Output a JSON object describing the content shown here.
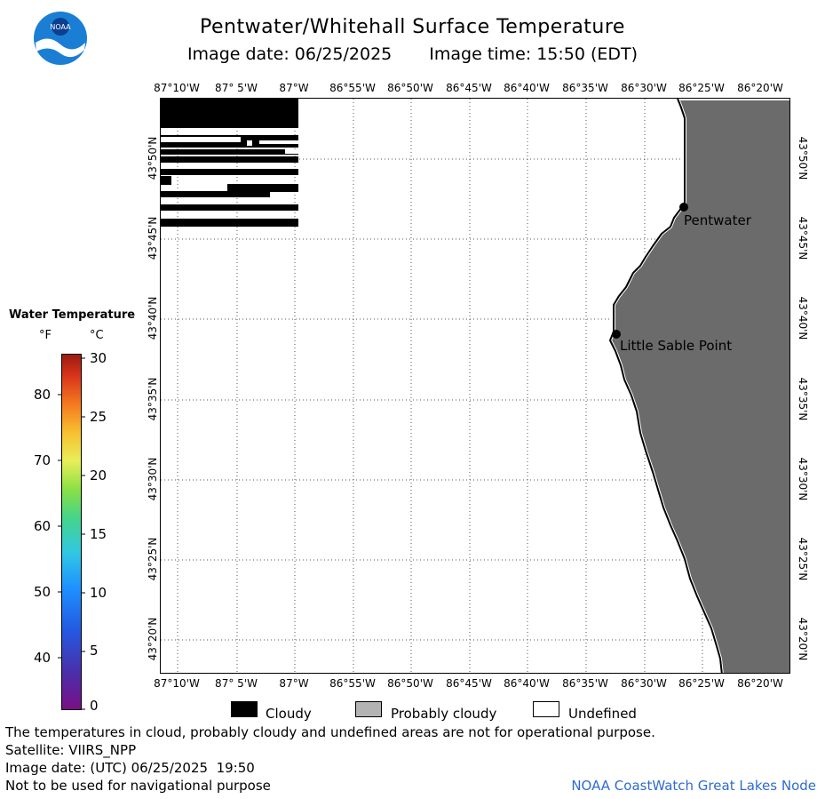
{
  "header": {
    "title": "Pentwater/Whitehall Surface Temperature",
    "image_date": "Image date: 06/25/2025",
    "image_time": "Image time: 15:50 (EDT)"
  },
  "logo": {
    "text": "NOAA",
    "icon": "noaa-logo-icon"
  },
  "map": {
    "lon_labels": [
      "87°10'W",
      "87° 5'W",
      "87°W",
      "86°55'W",
      "86°50'W",
      "86°45'W",
      "86°40'W",
      "86°35'W",
      "86°30'W",
      "86°25'W",
      "86°20'W"
    ],
    "lat_labels": [
      "43°50'N",
      "43°45'N",
      "43°40'N",
      "43°35'N",
      "43°30'N",
      "43°25'N",
      "43°20'N"
    ],
    "places": [
      "Pentwater",
      "Little Sable Point"
    ],
    "colors": {
      "land": "#6b6b6b",
      "cloudy": "#000000",
      "probably_cloudy": "#b3b3b3",
      "undefined": "#ffffff"
    }
  },
  "temperature_legend": {
    "title": "Water Temperature",
    "unit_f": "°F",
    "unit_c": "°C",
    "f_ticks": [
      "80",
      "70",
      "60",
      "50",
      "40"
    ],
    "c_ticks": [
      "30",
      "25",
      "20",
      "15",
      "10",
      "5",
      "0"
    ]
  },
  "cloud_legend": [
    "Cloudy",
    "Probably cloudy",
    "Undefined"
  ],
  "footer": {
    "disclaimer": "The temperatures in cloud, probably cloudy and undefined areas are not for operational purpose.",
    "satellite": "Satellite: VIIRS_NPP",
    "utc_date": "Image date: (UTC) 06/25/2025  19:50",
    "navigation": "Not to be used for navigational purpose",
    "credit": "NOAA CoastWatch Great Lakes Node"
  }
}
